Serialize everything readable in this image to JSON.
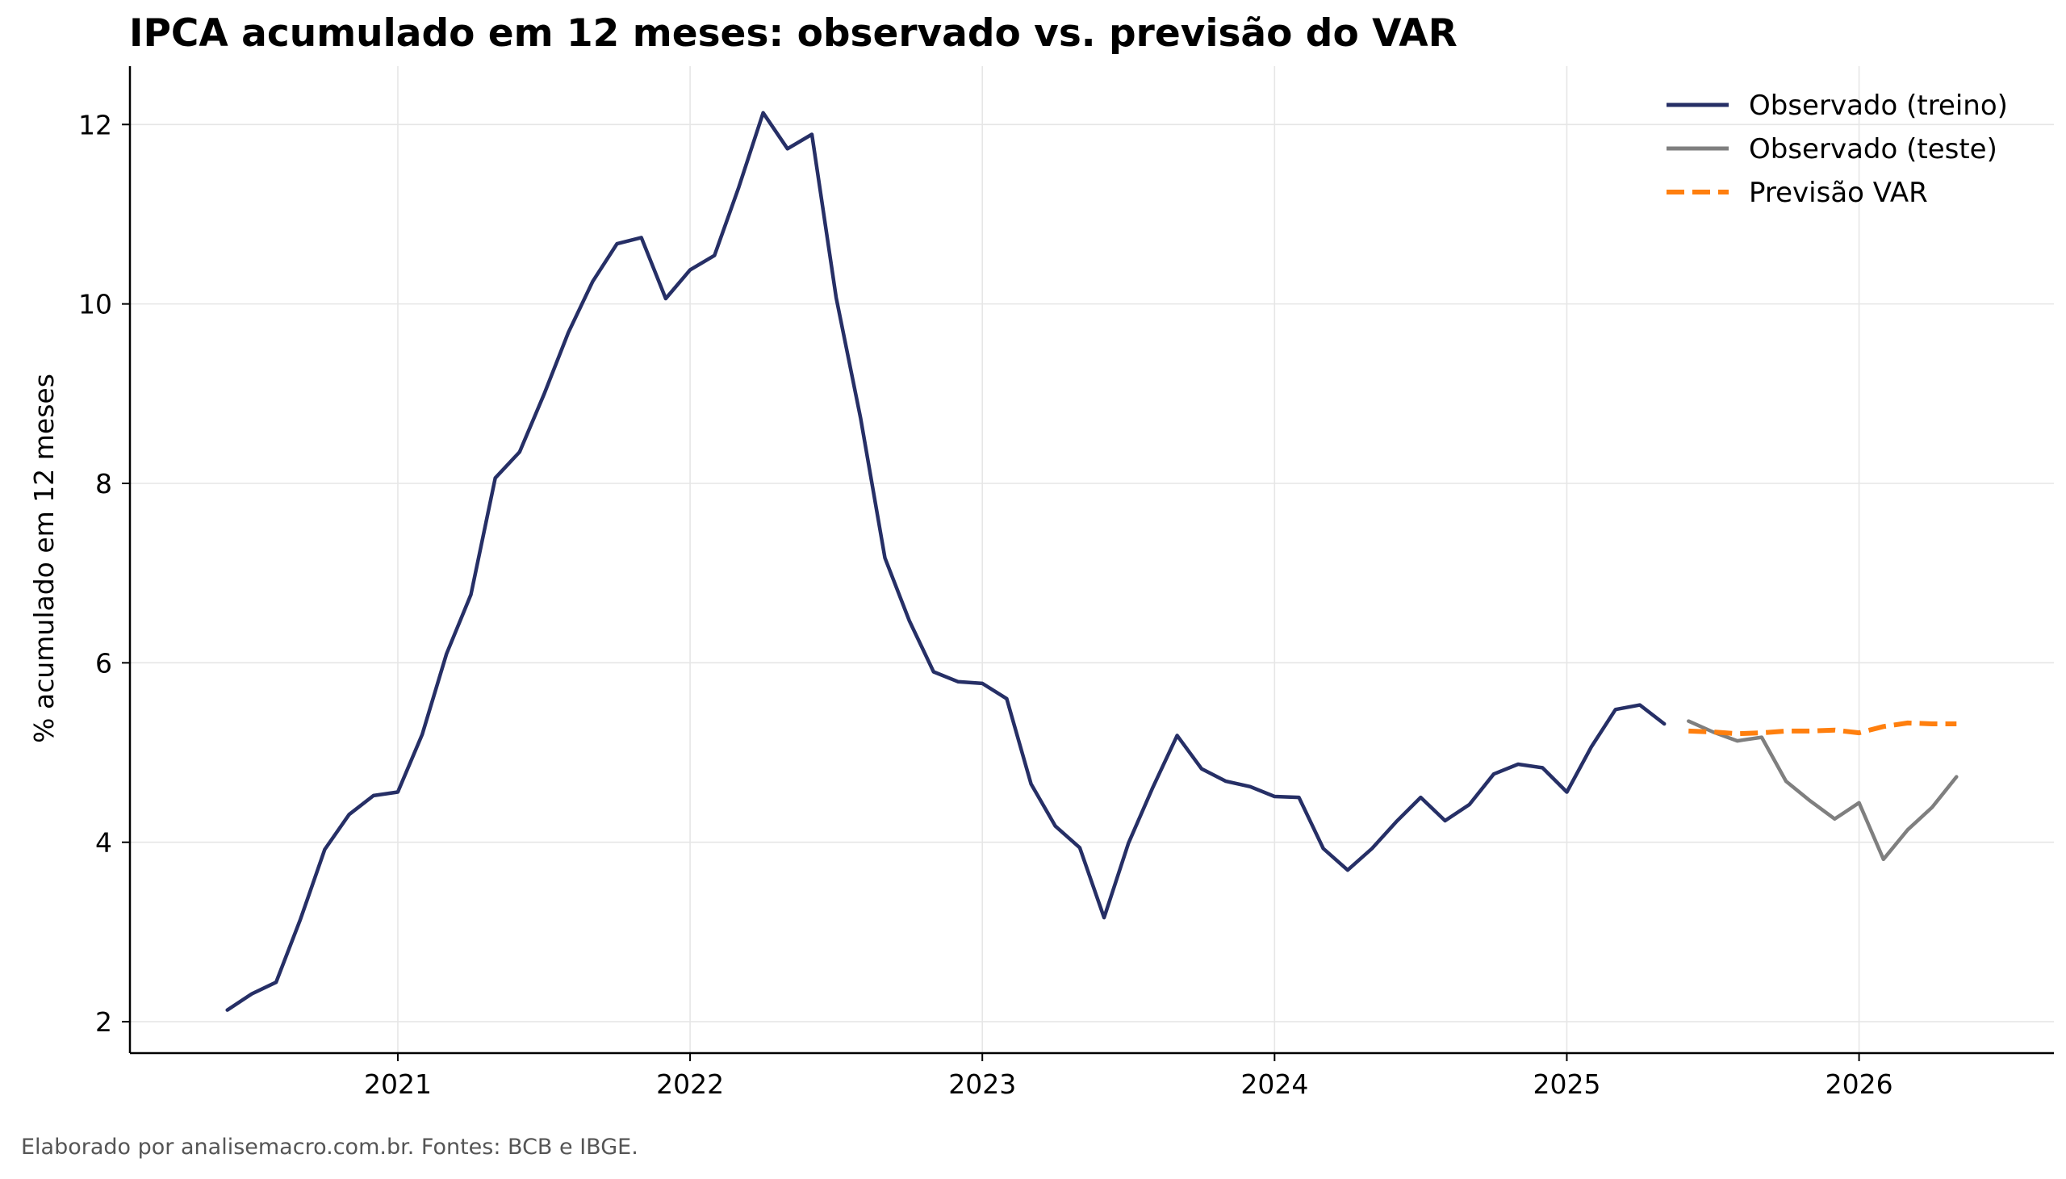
{
  "chart_data": {
    "type": "line",
    "title": "IPCA acumulado em 12 meses: observado vs. previsão do VAR",
    "xlabel": "",
    "ylabel": "% acumulado em 12 meses",
    "xlim": [
      "2020-02",
      "2026-09"
    ],
    "ylim": [
      1.65,
      12.65
    ],
    "x_ticks": [
      "2021",
      "2022",
      "2023",
      "2024",
      "2025",
      "2026"
    ],
    "y_ticks": [
      2,
      4,
      6,
      8,
      10,
      12
    ],
    "grid": true,
    "legend_position": "top-right",
    "series": [
      {
        "name": "Observado (treino)",
        "color": "#262f66",
        "style": "solid",
        "x": [
          "2020-06",
          "2020-07",
          "2020-08",
          "2020-09",
          "2020-10",
          "2020-11",
          "2020-12",
          "2021-01",
          "2021-02",
          "2021-03",
          "2021-04",
          "2021-05",
          "2021-06",
          "2021-07",
          "2021-08",
          "2021-09",
          "2021-10",
          "2021-11",
          "2021-12",
          "2022-01",
          "2022-02",
          "2022-03",
          "2022-04",
          "2022-05",
          "2022-06",
          "2022-07",
          "2022-08",
          "2022-09",
          "2022-10",
          "2022-11",
          "2022-12",
          "2023-01",
          "2023-02",
          "2023-03",
          "2023-04",
          "2023-05",
          "2023-06",
          "2023-07",
          "2023-08",
          "2023-09",
          "2023-10",
          "2023-11",
          "2023-12",
          "2024-01",
          "2024-02",
          "2024-03",
          "2024-04",
          "2024-05",
          "2024-06",
          "2024-07",
          "2024-08",
          "2024-09",
          "2024-10",
          "2024-11",
          "2024-12",
          "2025-01",
          "2025-02",
          "2025-03",
          "2025-04",
          "2025-05"
        ],
        "values": [
          2.13,
          2.31,
          2.44,
          3.14,
          3.92,
          4.31,
          4.52,
          4.56,
          5.2,
          6.1,
          6.76,
          8.06,
          8.35,
          8.99,
          9.68,
          10.25,
          10.67,
          10.74,
          10.06,
          10.38,
          10.54,
          11.3,
          12.13,
          11.73,
          11.89,
          10.07,
          8.73,
          7.17,
          6.47,
          5.9,
          5.79,
          5.77,
          5.6,
          4.65,
          4.18,
          3.94,
          3.16,
          3.99,
          4.61,
          5.19,
          4.82,
          4.68,
          4.62,
          4.51,
          4.5,
          3.93,
          3.69,
          3.93,
          4.23,
          4.5,
          4.24,
          4.42,
          4.76,
          4.87,
          4.83,
          4.56,
          5.06,
          5.48,
          5.53,
          5.32
        ]
      },
      {
        "name": "Observado (teste)",
        "color": "#7f7f7f",
        "style": "solid",
        "x": [
          "2025-06",
          "2025-07",
          "2025-08",
          "2025-09",
          "2025-10",
          "2025-11",
          "2025-12",
          "2026-01",
          "2026-02",
          "2026-03",
          "2026-04",
          "2026-05"
        ],
        "values": [
          5.35,
          5.23,
          5.13,
          5.17,
          4.68,
          4.46,
          4.26,
          4.44,
          3.81,
          4.14,
          4.39,
          4.73
        ]
      },
      {
        "name": "Previsão VAR",
        "color": "#ff7f0e",
        "style": "dashed",
        "x": [
          "2025-06",
          "2025-07",
          "2025-08",
          "2025-09",
          "2025-10",
          "2025-11",
          "2025-12",
          "2026-01",
          "2026-02",
          "2026-03",
          "2026-04",
          "2026-05"
        ],
        "values": [
          5.24,
          5.23,
          5.21,
          5.22,
          5.24,
          5.24,
          5.25,
          5.22,
          5.29,
          5.33,
          5.32,
          5.32
        ]
      }
    ]
  },
  "footer": {
    "note": "Elaborado por analisemacro.com.br. Fontes: BCB e IBGE."
  }
}
